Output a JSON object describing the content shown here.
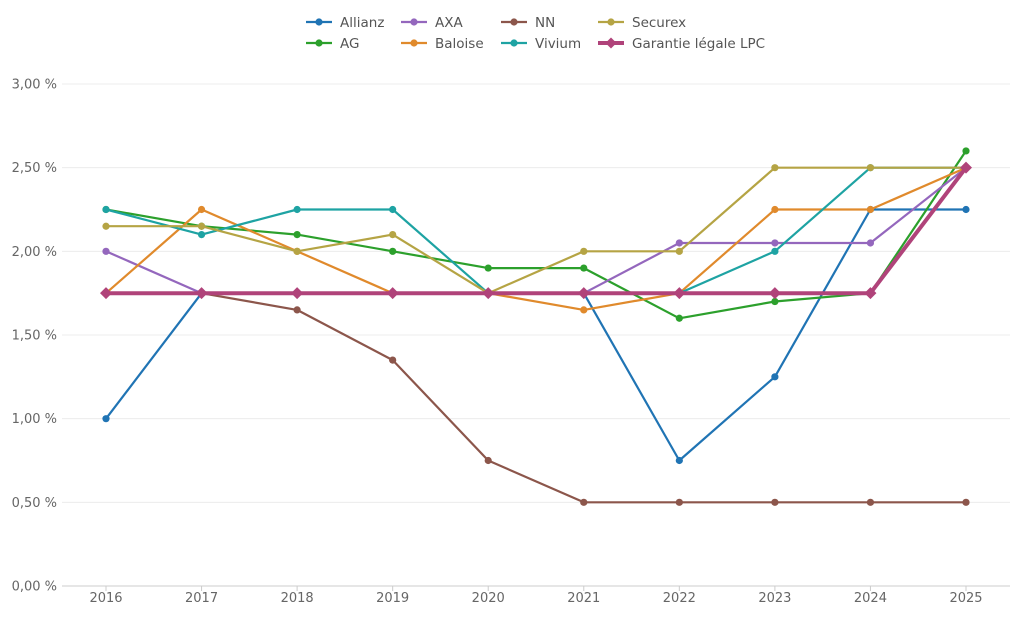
{
  "chart_data": {
    "type": "line",
    "x": [
      "2016",
      "2017",
      "2018",
      "2019",
      "2020",
      "2021",
      "2022",
      "2023",
      "2024",
      "2025"
    ],
    "ylim": [
      0,
      3
    ],
    "yticks": [
      0,
      0.5,
      1.0,
      1.5,
      2.0,
      2.5,
      3.0
    ],
    "ytick_labels": [
      "0,00 %",
      "0,50 %",
      "1,00 %",
      "1,50 %",
      "2,00 %",
      "2,50 %",
      "3,00 %"
    ],
    "grid": true,
    "legend_position": "top-center",
    "series": [
      {
        "name": "Allianz",
        "color": "#2074b4",
        "values": [
          1.0,
          1.75,
          1.75,
          1.75,
          1.75,
          1.75,
          0.75,
          1.25,
          2.25,
          2.25
        ]
      },
      {
        "name": "AG",
        "color": "#2ca02c",
        "values": [
          2.25,
          2.15,
          2.1,
          2.0,
          1.9,
          1.9,
          1.6,
          1.7,
          1.75,
          2.6
        ]
      },
      {
        "name": "AXA",
        "color": "#9467bd",
        "values": [
          2.0,
          1.75,
          1.75,
          1.75,
          1.75,
          1.75,
          2.05,
          2.05,
          2.05,
          2.5
        ]
      },
      {
        "name": "Baloise",
        "color": "#e08a2c",
        "values": [
          1.75,
          2.25,
          2.0,
          1.75,
          1.75,
          1.65,
          1.75,
          2.25,
          2.25,
          2.5
        ]
      },
      {
        "name": "NN",
        "color": "#8c564b",
        "values": [
          1.75,
          1.75,
          1.65,
          1.35,
          0.75,
          0.5,
          0.5,
          0.5,
          0.5,
          0.5
        ]
      },
      {
        "name": "Vivium",
        "color": "#1ea3a3",
        "values": [
          2.25,
          2.1,
          2.25,
          2.25,
          1.75,
          1.75,
          1.75,
          2.0,
          2.5,
          2.5
        ]
      },
      {
        "name": "Securex",
        "color": "#b5a444",
        "values": [
          2.15,
          2.15,
          2.0,
          2.1,
          1.75,
          2.0,
          2.0,
          2.5,
          2.5,
          2.5
        ]
      },
      {
        "name": "Garantie légale LPC",
        "color": "#b0437a",
        "marker": "diamond",
        "emphasis": true,
        "values": [
          1.75,
          1.75,
          1.75,
          1.75,
          1.75,
          1.75,
          1.75,
          1.75,
          1.75,
          2.5
        ]
      }
    ]
  }
}
